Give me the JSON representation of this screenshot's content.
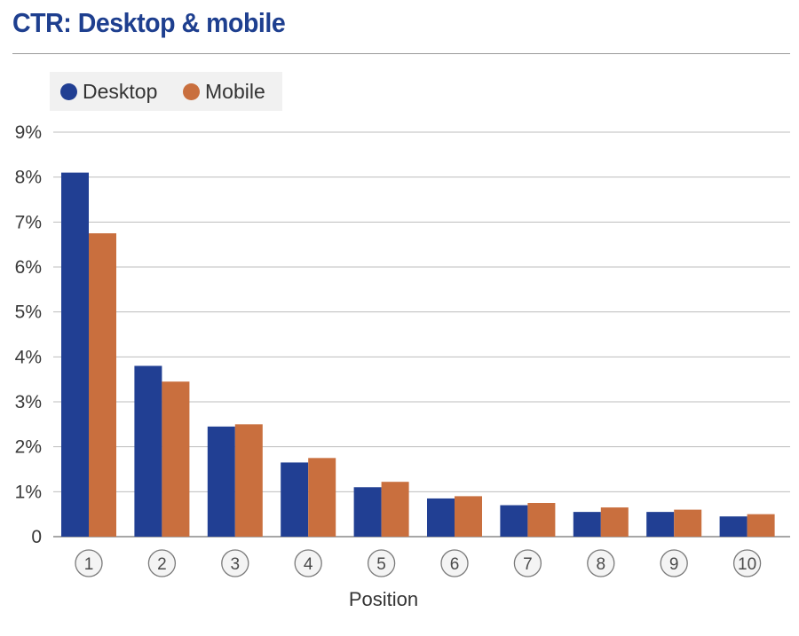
{
  "chart_data": {
    "type": "bar",
    "title": "CTR: Desktop & mobile",
    "xlabel": "Position",
    "ylabel": "",
    "ylim": [
      0,
      9
    ],
    "yticks": [
      "0",
      "1%",
      "2%",
      "3%",
      "4%",
      "5%",
      "6%",
      "7%",
      "8%",
      "9%"
    ],
    "grid": true,
    "legend_position": "top-left",
    "categories": [
      "1",
      "2",
      "3",
      "4",
      "5",
      "6",
      "7",
      "8",
      "9",
      "10"
    ],
    "series": [
      {
        "name": "Desktop",
        "color": "#213f93",
        "values": [
          8.1,
          3.8,
          2.45,
          1.65,
          1.1,
          0.85,
          0.7,
          0.55,
          0.55,
          0.45
        ]
      },
      {
        "name": "Mobile",
        "color": "#c96f3e",
        "values": [
          6.75,
          3.45,
          2.5,
          1.75,
          1.22,
          0.9,
          0.75,
          0.65,
          0.6,
          0.5
        ]
      }
    ]
  }
}
